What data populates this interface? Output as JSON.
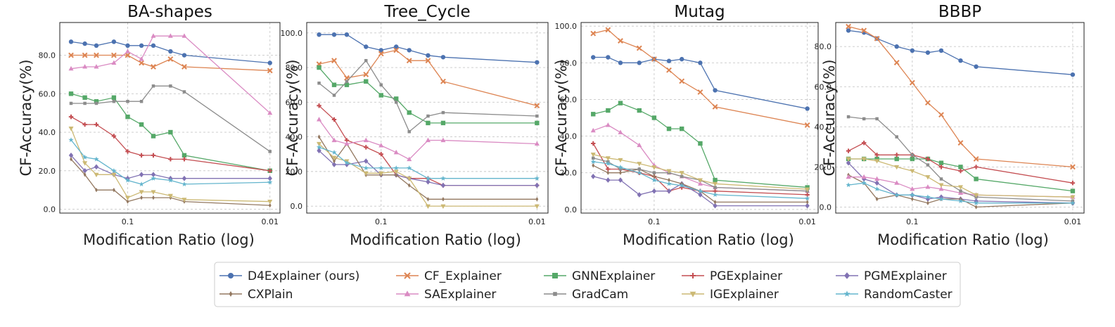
{
  "chart_data": [
    {
      "type": "line",
      "title": "BA-shapes",
      "xlabel": "Modification Ratio (log)",
      "ylabel": "CF-Accuracy(%)",
      "x_scale": "log-reversed",
      "xlim": [
        0.3,
        0.0085
      ],
      "ylim": [
        -2,
        97
      ],
      "yticks": [
        0,
        20,
        40,
        60,
        80
      ],
      "ytick_labels": [
        "0.0",
        "20.0",
        "40.0",
        "60.0",
        "80.0"
      ],
      "xticks": [
        0.1,
        0.01
      ],
      "xtick_labels": [
        "0.1",
        "0.01"
      ],
      "x": [
        0.25,
        0.2,
        0.166,
        0.125,
        0.1,
        0.08,
        0.066,
        0.05,
        0.04,
        0.02,
        0.01
      ],
      "series": [
        {
          "name": "D4Explainer (ours)",
          "values": [
            87,
            86,
            85,
            87,
            85,
            85,
            85,
            82,
            80,
            null,
            76
          ]
        },
        {
          "name": "CF_Explainer",
          "values": [
            80,
            80,
            80,
            80,
            80,
            76,
            74,
            78,
            74,
            null,
            72
          ]
        },
        {
          "name": "GNNExplainer",
          "values": [
            60,
            58,
            56,
            58,
            48,
            44,
            38,
            40,
            28,
            null,
            20
          ]
        },
        {
          "name": "PGExplainer",
          "values": [
            48,
            44,
            44,
            38,
            30,
            28,
            28,
            26,
            26,
            null,
            20
          ]
        },
        {
          "name": "PGMExplainer",
          "values": [
            28,
            20,
            22,
            18,
            16,
            18,
            18,
            16,
            16,
            null,
            16
          ]
        },
        {
          "name": "CXPlain",
          "values": [
            26,
            18,
            10,
            10,
            4,
            6,
            6,
            6,
            4,
            null,
            2
          ]
        },
        {
          "name": "SAExplainer",
          "values": [
            73,
            74,
            74,
            76,
            82,
            78,
            90,
            90,
            90,
            null,
            50
          ]
        },
        {
          "name": "GradCam",
          "values": [
            55,
            55,
            55,
            56,
            56,
            56,
            64,
            64,
            61,
            null,
            30
          ]
        },
        {
          "name": "IGExplainer",
          "values": [
            42,
            24,
            18,
            18,
            6,
            9,
            9,
            7,
            5,
            null,
            4
          ]
        },
        {
          "name": "RandomCaster",
          "values": [
            36,
            27,
            26,
            20,
            15,
            13,
            16,
            15,
            13,
            null,
            14
          ]
        }
      ]
    },
    {
      "type": "line",
      "title": "Tree_Cycle",
      "xlabel": "Modification Ratio (log)",
      "ylabel": "CF-Accuracy(%)",
      "x_scale": "log-reversed",
      "xlim": [
        0.3,
        0.0085
      ],
      "ylim": [
        -4,
        106
      ],
      "yticks": [
        0,
        20,
        40,
        60,
        80,
        100
      ],
      "ytick_labels": [
        "0.0",
        "20.0",
        "40.0",
        "60.0",
        "80.0",
        "100.0"
      ],
      "xticks": [
        0.1,
        0.01
      ],
      "xtick_labels": [
        "0.1",
        "0.01"
      ],
      "x": [
        0.25,
        0.2,
        0.166,
        0.125,
        0.1,
        0.08,
        0.066,
        0.05,
        0.04,
        0.02,
        0.01
      ],
      "series": [
        {
          "name": "D4Explainer (ours)",
          "values": [
            99,
            99,
            99,
            92,
            90,
            92,
            90,
            87,
            86,
            null,
            83
          ]
        },
        {
          "name": "CF_Explainer",
          "values": [
            82,
            84,
            74,
            76,
            88,
            90,
            84,
            84,
            72,
            null,
            58
          ]
        },
        {
          "name": "GNNExplainer",
          "values": [
            80,
            70,
            70,
            72,
            64,
            62,
            54,
            48,
            48,
            null,
            48
          ]
        },
        {
          "name": "PGExplainer",
          "values": [
            58,
            50,
            38,
            34,
            30,
            18,
            16,
            16,
            12,
            null,
            12
          ]
        },
        {
          "name": "PGMExplainer",
          "values": [
            32,
            24,
            24,
            26,
            18,
            18,
            16,
            14,
            12,
            null,
            12
          ]
        },
        {
          "name": "CXPlain",
          "values": [
            40,
            26,
            36,
            18,
            18,
            18,
            12,
            4,
            4,
            null,
            4
          ]
        },
        {
          "name": "SAExplainer",
          "values": [
            50,
            38,
            36,
            38,
            35,
            31,
            27,
            38,
            38,
            null,
            36
          ]
        },
        {
          "name": "GradCam",
          "values": [
            71,
            64,
            72,
            84,
            70,
            60,
            43,
            52,
            54,
            null,
            52
          ]
        },
        {
          "name": "IGExplainer",
          "values": [
            36,
            28,
            26,
            19,
            19,
            20,
            16,
            0,
            0,
            null,
            0
          ]
        },
        {
          "name": "RandomCaster",
          "values": [
            34,
            31,
            25,
            22,
            22,
            22,
            22,
            16,
            16,
            null,
            16
          ]
        }
      ]
    },
    {
      "type": "line",
      "title": "Mutag",
      "xlabel": "Modification Ratio (log)",
      "ylabel": "CF-Accuracy(%)",
      "x_scale": "log-reversed",
      "xlim": [
        0.3,
        0.0085
      ],
      "ylim": [
        -2,
        102
      ],
      "yticks": [
        0,
        20,
        40,
        60,
        80,
        100
      ],
      "ytick_labels": [
        "0.0",
        "20.0",
        "40.0",
        "60.0",
        "80.0",
        "100.0"
      ],
      "xticks": [
        0.1,
        0.01
      ],
      "xtick_labels": [
        "0.1",
        "0.01"
      ],
      "x": [
        0.25,
        0.2,
        0.166,
        0.125,
        0.1,
        0.08,
        0.066,
        0.05,
        0.04,
        0.02,
        0.01
      ],
      "series": [
        {
          "name": "D4Explainer (ours)",
          "values": [
            83,
            83,
            80,
            80,
            82,
            81,
            82,
            80,
            65,
            null,
            55
          ]
        },
        {
          "name": "CF_Explainer",
          "values": [
            96,
            98,
            92,
            88,
            82,
            76,
            70,
            64,
            56,
            null,
            46
          ]
        },
        {
          "name": "GNNExplainer",
          "values": [
            52,
            54,
            58,
            54,
            50,
            44,
            44,
            36,
            16,
            null,
            12
          ]
        },
        {
          "name": "PGExplainer",
          "values": [
            36,
            22,
            22,
            20,
            18,
            10,
            12,
            10,
            10,
            null,
            8
          ]
        },
        {
          "name": "PGMExplainer",
          "values": [
            18,
            16,
            16,
            8,
            10,
            10,
            14,
            8,
            2,
            null,
            2
          ]
        },
        {
          "name": "CXPlain",
          "values": [
            24,
            20,
            20,
            22,
            18,
            16,
            14,
            10,
            4,
            null,
            4
          ]
        },
        {
          "name": "SAExplainer",
          "values": [
            43,
            46,
            42,
            35,
            24,
            20,
            18,
            14,
            12,
            null,
            10
          ]
        },
        {
          "name": "GradCam",
          "values": [
            28,
            26,
            22,
            22,
            20,
            20,
            18,
            16,
            12,
            null,
            10
          ]
        },
        {
          "name": "IGExplainer",
          "values": [
            30,
            28,
            27,
            25,
            23,
            21,
            20,
            16,
            14,
            null,
            11
          ]
        },
        {
          "name": "RandomCaster",
          "values": [
            26,
            25,
            23,
            20,
            16,
            14,
            13,
            10,
            8,
            null,
            6
          ]
        }
      ]
    },
    {
      "type": "line",
      "title": "BBBP",
      "xlabel": "Modification Ratio (log)",
      "ylabel": "CF-Accuracy(%)",
      "x_scale": "log-reversed",
      "xlim": [
        0.3,
        0.0085
      ],
      "ylim": [
        -3,
        92
      ],
      "yticks": [
        0,
        20,
        40,
        60,
        80
      ],
      "ytick_labels": [
        "0.0",
        "20.0",
        "40.0",
        "60.0",
        "80.0"
      ],
      "xticks": [
        0.1,
        0.01
      ],
      "xtick_labels": [
        "0.1",
        "0.01"
      ],
      "x": [
        0.25,
        0.2,
        0.166,
        0.125,
        0.1,
        0.08,
        0.066,
        0.05,
        0.04,
        0.02,
        0.01
      ],
      "series": [
        {
          "name": "D4Explainer (ours)",
          "values": [
            88,
            87,
            84,
            80,
            78,
            77,
            78,
            73,
            70,
            null,
            66
          ]
        },
        {
          "name": "CF_Explainer",
          "values": [
            90,
            88,
            84,
            72,
            62,
            52,
            46,
            32,
            24,
            null,
            20
          ]
        },
        {
          "name": "GNNExplainer",
          "values": [
            24,
            24,
            24,
            24,
            24,
            24,
            22,
            20,
            14,
            null,
            8
          ]
        },
        {
          "name": "PGExplainer",
          "values": [
            28,
            32,
            26,
            26,
            26,
            24,
            20,
            18,
            20,
            null,
            12
          ]
        },
        {
          "name": "PGMExplainer",
          "values": [
            22,
            14,
            12,
            6,
            6,
            4,
            5,
            4,
            3,
            null,
            2
          ]
        },
        {
          "name": "CXPlain",
          "values": [
            16,
            12,
            4,
            6,
            4,
            2,
            4,
            4,
            0,
            null,
            2
          ]
        },
        {
          "name": "SAExplainer",
          "values": [
            15,
            15,
            14,
            12,
            9,
            10,
            9,
            7,
            6,
            null,
            5
          ]
        },
        {
          "name": "GradCam",
          "values": [
            45,
            44,
            44,
            35,
            26,
            21,
            14,
            8,
            5,
            null,
            3
          ]
        },
        {
          "name": "IGExplainer",
          "values": [
            24,
            24,
            23,
            20,
            18,
            15,
            11,
            10,
            6,
            null,
            5
          ]
        },
        {
          "name": "RandomCaster",
          "values": [
            11,
            12,
            9,
            6,
            6,
            5,
            4,
            3,
            2,
            null,
            2
          ]
        }
      ]
    }
  ],
  "legend": {
    "placement": "bottom-center",
    "entries": [
      {
        "name": "D4Explainer (ours)",
        "color": "#4c72b0",
        "marker": "circle"
      },
      {
        "name": "CF_Explainer",
        "color": "#dd8452",
        "marker": "x"
      },
      {
        "name": "GNNExplainer",
        "color": "#55a868",
        "marker": "square"
      },
      {
        "name": "PGExplainer",
        "color": "#c44e52",
        "marker": "plus"
      },
      {
        "name": "PGMExplainer",
        "color": "#8172b3",
        "marker": "diamond"
      },
      {
        "name": "CXPlain",
        "color": "#937860",
        "marker": "thin-diamond"
      },
      {
        "name": "SAExplainer",
        "color": "#da8bc3",
        "marker": "triangle-up"
      },
      {
        "name": "GradCam",
        "color": "#8c8c8c",
        "marker": "small-square"
      },
      {
        "name": "IGExplainer",
        "color": "#ccb974",
        "marker": "triangle-down"
      },
      {
        "name": "RandomCaster",
        "color": "#64b5cd",
        "marker": "star"
      }
    ]
  },
  "grid": true
}
